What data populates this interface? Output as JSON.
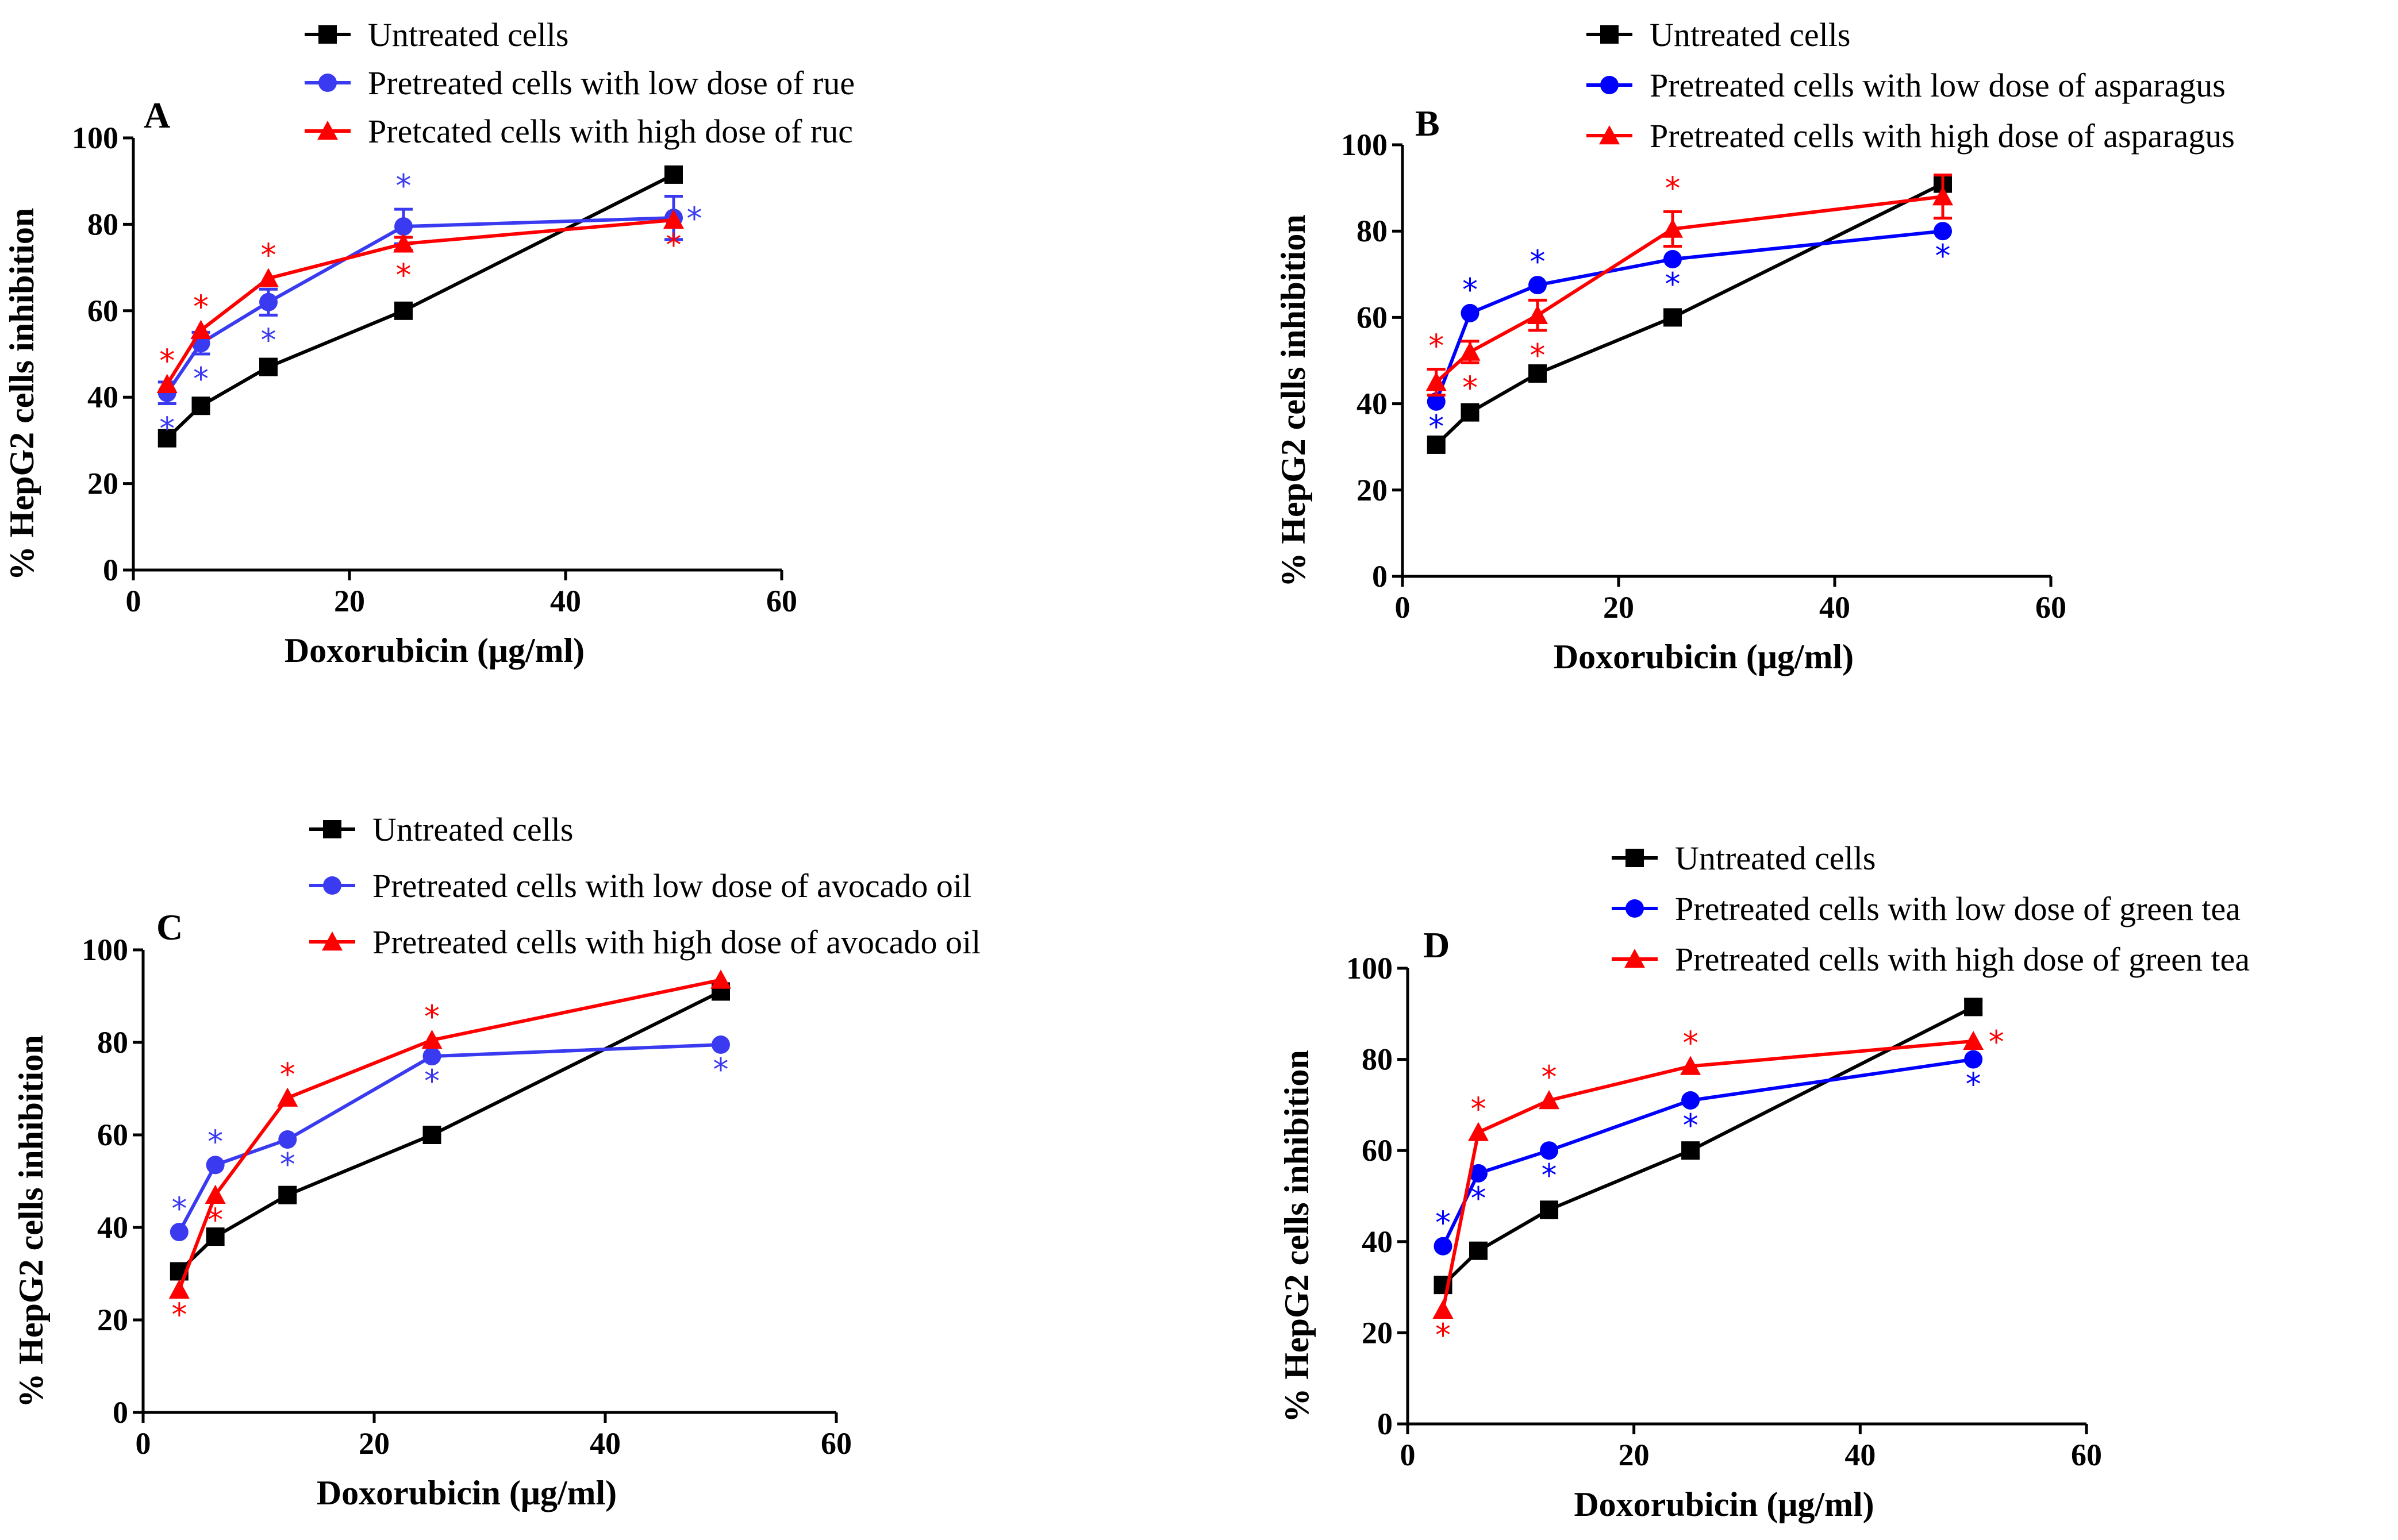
{
  "chart_data": [
    {
      "type": "line",
      "panel": "A",
      "xlabel": "Doxorubicin (μg/ml)",
      "ylabel": "% HepG2 cells inhibition",
      "xlim": [
        0,
        60
      ],
      "ylim": [
        0,
        100
      ],
      "xticks": [
        "0",
        "20",
        "40",
        "60"
      ],
      "yticks": [
        "0",
        "20",
        "40",
        "60",
        "80",
        "100"
      ],
      "x": [
        3.125,
        6.25,
        12.5,
        25,
        50
      ],
      "series": [
        {
          "name": "Untreated cells",
          "color": "#000000",
          "marker": "square",
          "values": [
            30.5,
            38,
            47,
            60,
            91.5
          ],
          "err": [
            0,
            0,
            0,
            0,
            1.5
          ],
          "stars": [
            false,
            false,
            false,
            false,
            false
          ]
        },
        {
          "name": "Pretreated cells with low dose of rue",
          "color": "#3a3af0",
          "marker": "circle",
          "values": [
            41,
            52.5,
            62,
            79.5,
            81.5
          ],
          "err": [
            2.5,
            2.5,
            3,
            4,
            5
          ],
          "stars": [
            true,
            true,
            true,
            true,
            true
          ]
        },
        {
          "name": "Pretcated cells with high dose of ruc",
          "color": "#ff0000",
          "marker": "triangle",
          "values": [
            43,
            55.5,
            67.5,
            75.5,
            81
          ],
          "err": [
            0,
            0,
            0,
            1.5,
            0
          ],
          "stars": [
            true,
            true,
            true,
            true,
            true
          ]
        }
      ],
      "star_glyph": "*"
    },
    {
      "type": "line",
      "panel": "B",
      "xlabel": "Doxorubicin (μg/ml)",
      "ylabel": "% HepG2 cells inhibition",
      "xlim": [
        0,
        60
      ],
      "ylim": [
        0,
        100
      ],
      "xticks": [
        "0",
        "20",
        "40",
        "60"
      ],
      "yticks": [
        "0",
        "20",
        "40",
        "60",
        "80",
        "100"
      ],
      "x": [
        3.125,
        6.25,
        12.5,
        25,
        50
      ],
      "series": [
        {
          "name": "Untreated cells",
          "color": "#000000",
          "marker": "square",
          "values": [
            30.5,
            38,
            47,
            60,
            91
          ],
          "err": [
            0,
            0,
            0,
            0,
            1.5
          ],
          "stars": [
            false,
            false,
            false,
            false,
            false
          ]
        },
        {
          "name": "Pretreated cells with low dose of asparagus",
          "color": "#0000ff",
          "marker": "circle",
          "values": [
            40.5,
            61,
            67.5,
            73.5,
            80
          ],
          "err": [
            0,
            0,
            0,
            0,
            0
          ],
          "stars": [
            true,
            true,
            true,
            true,
            true
          ]
        },
        {
          "name": "Pretreated cells with high dose of asparagus",
          "color": "#ff0000",
          "marker": "triangle",
          "values": [
            45,
            52,
            60.5,
            80.5,
            88
          ],
          "err": [
            3,
            2.5,
            3.5,
            4,
            5
          ],
          "stars": [
            true,
            true,
            true,
            true,
            false
          ]
        }
      ],
      "star_glyph": "*"
    },
    {
      "type": "line",
      "panel": "C",
      "xlabel": "Doxorubicin (μg/ml)",
      "ylabel": "% HepG2 cells inhibition",
      "xlim": [
        0,
        60
      ],
      "ylim": [
        0,
        100
      ],
      "xticks": [
        "0",
        "20",
        "40",
        "60"
      ],
      "yticks": [
        "0",
        "20",
        "40",
        "60",
        "80",
        "100"
      ],
      "x": [
        3.125,
        6.25,
        12.5,
        25,
        50
      ],
      "series": [
        {
          "name": "Untreated cells",
          "color": "#000000",
          "marker": "square",
          "values": [
            30.5,
            38,
            47,
            60,
            91
          ],
          "err": [
            0,
            0,
            0,
            0,
            1.5
          ],
          "stars": [
            false,
            false,
            false,
            false,
            false
          ]
        },
        {
          "name": "Pretreated cells with low dose of avocado oil",
          "color": "#3a3af0",
          "marker": "circle",
          "values": [
            39,
            53.5,
            59,
            77,
            79.5
          ],
          "err": [
            0,
            0,
            0,
            0,
            0
          ],
          "stars": [
            true,
            true,
            true,
            true,
            true
          ]
        },
        {
          "name": "Pretreated cells with high dose of avocado oil",
          "color": "#ff0000",
          "marker": "triangle",
          "values": [
            26.5,
            47,
            68,
            80.5,
            93.5
          ],
          "err": [
            0,
            0,
            0,
            0,
            0
          ],
          "stars": [
            true,
            true,
            true,
            true,
            false
          ]
        }
      ],
      "star_glyph": "*"
    },
    {
      "type": "line",
      "panel": "D",
      "xlabel": "Doxorubicin (μg/ml)",
      "ylabel": "% HepG2 cells inhibition",
      "xlim": [
        0,
        60
      ],
      "ylim": [
        0,
        100
      ],
      "xticks": [
        "0",
        "20",
        "40",
        "60"
      ],
      "yticks": [
        "0",
        "20",
        "40",
        "60",
        "80",
        "100"
      ],
      "x": [
        3.125,
        6.25,
        12.5,
        25,
        50
      ],
      "series": [
        {
          "name": "Untreated cells",
          "color": "#000000",
          "marker": "square",
          "values": [
            30.5,
            38,
            47,
            60,
            91.5
          ],
          "err": [
            0,
            0,
            0,
            0,
            1.5
          ],
          "stars": [
            false,
            false,
            false,
            false,
            false
          ]
        },
        {
          "name": "Pretreated cells with low dose of green tea",
          "color": "#0000ff",
          "marker": "circle",
          "values": [
            39,
            55,
            60,
            71,
            80
          ],
          "err": [
            0,
            0,
            0,
            0,
            0
          ],
          "stars": [
            true,
            true,
            true,
            true,
            true
          ]
        },
        {
          "name": "Pretreated cells with high dose of green tea",
          "color": "#ff0000",
          "marker": "triangle",
          "values": [
            25,
            64,
            71,
            78.5,
            84
          ],
          "err": [
            0,
            0,
            0,
            0,
            0
          ],
          "stars": [
            true,
            true,
            true,
            true,
            true
          ]
        }
      ],
      "star_glyph": "*"
    }
  ]
}
